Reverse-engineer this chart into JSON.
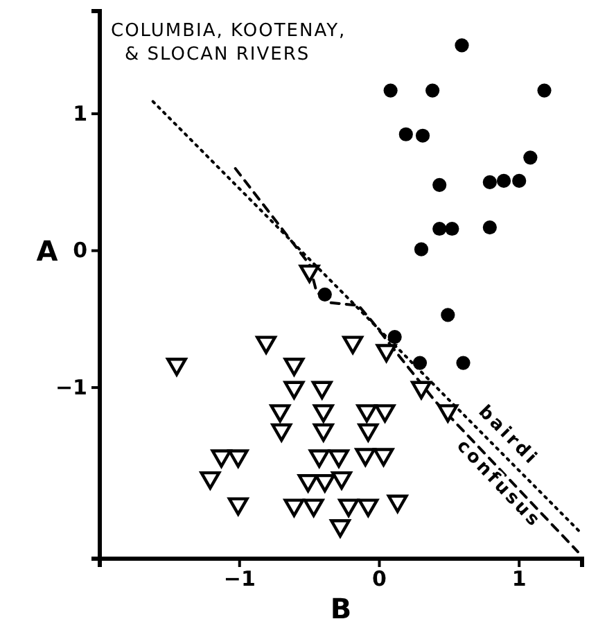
{
  "chart_data": {
    "type": "scatter",
    "title": "COLUMBIA, KOOTENAY,\n& SLOCAN RIVERS",
    "xlabel": "B",
    "ylabel": "A",
    "xlim": [
      -2,
      1.45
    ],
    "ylim": [
      -2.25,
      1.75
    ],
    "xticks": [
      -1,
      0,
      1
    ],
    "yticks": [
      -1,
      0,
      1
    ],
    "grid": false,
    "legend": false,
    "series": [
      {
        "type": "scatter",
        "marker": "circle",
        "color": "#000000",
        "x": [
          0.59,
          0.08,
          0.38,
          1.18,
          0.19,
          0.31,
          1.08,
          0.43,
          0.79,
          0.89,
          1.0,
          0.43,
          0.52,
          0.79,
          0.3,
          -0.39,
          0.49,
          0.11,
          0.29,
          0.6
        ],
        "values": [
          1.5,
          1.17,
          1.17,
          1.17,
          0.85,
          0.84,
          0.68,
          0.48,
          0.5,
          0.51,
          0.51,
          0.16,
          0.16,
          0.17,
          0.01,
          -0.32,
          -0.47,
          -0.63,
          -0.82,
          -0.82
        ]
      },
      {
        "type": "scatter",
        "marker": "triangle",
        "color": "#000000",
        "x": [
          -0.5,
          -1.45,
          -0.81,
          -0.19,
          0.05,
          -0.61,
          -0.61,
          -0.41,
          0.3,
          -0.71,
          -0.4,
          -0.09,
          0.04,
          0.49,
          -0.7,
          -0.4,
          -0.08,
          -1.13,
          -1.01,
          -0.43,
          -0.29,
          -0.1,
          0.03,
          -1.21,
          -0.51,
          -0.39,
          -0.27,
          -1.01,
          -0.61,
          -0.47,
          -0.22,
          -0.08,
          0.13,
          -0.28
        ],
        "values": [
          -0.15,
          -0.83,
          -0.67,
          -0.67,
          -0.73,
          -0.83,
          -1.0,
          -1.0,
          -1.0,
          -1.17,
          -1.17,
          -1.17,
          -1.17,
          -1.17,
          -1.31,
          -1.31,
          -1.31,
          -1.5,
          -1.5,
          -1.5,
          -1.5,
          -1.49,
          -1.49,
          -1.66,
          -1.68,
          -1.68,
          -1.66,
          -1.85,
          -1.86,
          -1.86,
          -1.86,
          -1.86,
          -1.83,
          -2.01
        ]
      },
      {
        "type": "line",
        "name": "bairdi",
        "line_style": "dotted",
        "color": "#000000",
        "x": [
          -1.62,
          1.45
        ],
        "values": [
          1.09,
          -2.07
        ]
      },
      {
        "type": "line",
        "name": "confusus",
        "line_style": "dashed",
        "color": "#000000",
        "x": [
          -1.03,
          -0.5,
          -0.45,
          -0.35,
          -0.15,
          -0.05,
          0.15,
          0.4,
          1.42
        ],
        "values": [
          0.6,
          -0.1,
          -0.3,
          -0.38,
          -0.4,
          -0.52,
          -0.78,
          -1.1,
          -2.2
        ]
      }
    ]
  }
}
